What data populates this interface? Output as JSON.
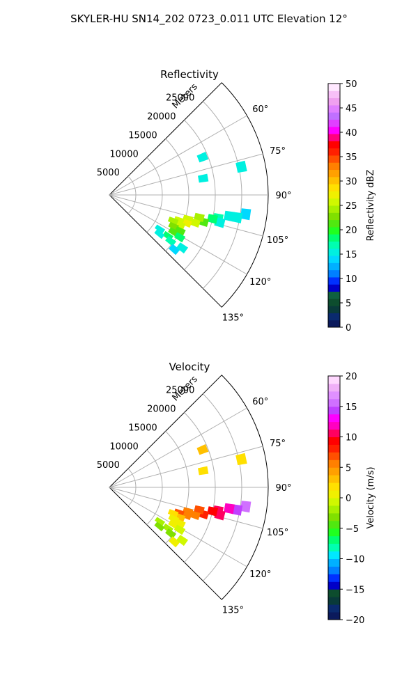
{
  "figure": {
    "title": "SKYLER-HU  SN14_202  0723_0.011 UTC Elevation 12°"
  },
  "chart_data": [
    {
      "type": "polar-sector",
      "title": "Reflectivity",
      "r_axis_label": "Meters",
      "r_ticks": [
        5000,
        10000,
        15000,
        20000,
        25000
      ],
      "r_tick_labels": [
        "5000",
        "10000",
        "15000",
        "20000",
        "25000"
      ],
      "r_max": 30000,
      "theta_range_deg": [
        45,
        135
      ],
      "theta_ticks": [
        60,
        75,
        90,
        105,
        120,
        135
      ],
      "theta_tick_labels": [
        "60°",
        "75°",
        "90°",
        "105°",
        "120°",
        "135°"
      ],
      "grid": true,
      "colorbar": {
        "label": "Reflectivity dBZ",
        "range": [
          0,
          50
        ],
        "ticks": [
          0,
          5,
          10,
          15,
          20,
          25,
          30,
          35,
          40,
          45,
          50
        ],
        "tick_labels": [
          "0",
          "5",
          "10",
          "15",
          "20",
          "25",
          "30",
          "35",
          "40",
          "45",
          "50"
        ],
        "colors": [
          "#0b1a5c",
          "#0a2a6e",
          "#093a3a",
          "#0d4d2e",
          "#0f6040",
          "#0000c8",
          "#0030ff",
          "#0080ff",
          "#00b0ff",
          "#00d8ff",
          "#00f0e0",
          "#00ffb0",
          "#00ff70",
          "#20ff20",
          "#50e810",
          "#80e000",
          "#a8f000",
          "#d0f800",
          "#f0f000",
          "#ffe000",
          "#ffc000",
          "#ffa000",
          "#ff8000",
          "#ff5000",
          "#ff2000",
          "#ff0000",
          "#ff0080",
          "#ff00ff",
          "#e040ff",
          "#c070ff",
          "#e080ff",
          "#f0a0f0",
          "#f8c0f8",
          "#ffe8ff"
        ]
      },
      "cells": [
        {
          "az": 98,
          "r": 26000,
          "v": 14
        },
        {
          "az": 100,
          "r": 24500,
          "v": 15
        },
        {
          "az": 100,
          "r": 23000,
          "v": 16
        },
        {
          "az": 102,
          "r": 21000,
          "v": 17
        },
        {
          "az": 104,
          "r": 21500,
          "v": 15
        },
        {
          "az": 103,
          "r": 20000,
          "v": 19
        },
        {
          "az": 106,
          "r": 18500,
          "v": 22
        },
        {
          "az": 104,
          "r": 17500,
          "v": 24
        },
        {
          "az": 108,
          "r": 17000,
          "v": 25
        },
        {
          "az": 107,
          "r": 15500,
          "v": 26
        },
        {
          "az": 110,
          "r": 15500,
          "v": 27
        },
        {
          "az": 110,
          "r": 14000,
          "v": 26
        },
        {
          "az": 113,
          "r": 14500,
          "v": 25
        },
        {
          "az": 112,
          "r": 13000,
          "v": 24
        },
        {
          "az": 116,
          "r": 13500,
          "v": 23
        },
        {
          "az": 117,
          "r": 15000,
          "v": 22
        },
        {
          "az": 120,
          "r": 14000,
          "v": 21
        },
        {
          "az": 121,
          "r": 15500,
          "v": 19
        },
        {
          "az": 125,
          "r": 13500,
          "v": 18
        },
        {
          "az": 127,
          "r": 14500,
          "v": 17
        },
        {
          "az": 124,
          "r": 11500,
          "v": 16
        },
        {
          "az": 128,
          "r": 12000,
          "v": 15
        },
        {
          "az": 130,
          "r": 16000,
          "v": 14
        },
        {
          "az": 126,
          "r": 17000,
          "v": 15
        },
        {
          "az": 80,
          "r": 18000,
          "v": 16
        },
        {
          "az": 68,
          "r": 19000,
          "v": 15
        },
        {
          "az": 78,
          "r": 25500,
          "v": 15
        }
      ]
    },
    {
      "type": "polar-sector",
      "title": "Velocity",
      "r_axis_label": "Meters",
      "r_ticks": [
        5000,
        10000,
        15000,
        20000,
        25000
      ],
      "r_tick_labels": [
        "5000",
        "10000",
        "15000",
        "20000",
        "25000"
      ],
      "r_max": 30000,
      "theta_range_deg": [
        45,
        135
      ],
      "theta_ticks": [
        60,
        75,
        90,
        105,
        120,
        135
      ],
      "theta_tick_labels": [
        "60°",
        "75°",
        "90°",
        "105°",
        "120°",
        "135°"
      ],
      "grid": true,
      "colorbar": {
        "label": "Velocity (m/s)",
        "range": [
          -20,
          20
        ],
        "ticks": [
          -20,
          -15,
          -10,
          -5,
          0,
          5,
          10,
          15,
          20
        ],
        "tick_labels": [
          "−20",
          "−15",
          "−10",
          "−5",
          "0",
          "5",
          "10",
          "15",
          "20"
        ],
        "colors": [
          "#0b1a5c",
          "#0a2a6e",
          "#093a3a",
          "#0d4d2e",
          "#0000c8",
          "#0030ff",
          "#0080ff",
          "#00b0ff",
          "#00e8ff",
          "#00ffb0",
          "#00ff70",
          "#20ff20",
          "#50e810",
          "#80e000",
          "#a8f000",
          "#d0f800",
          "#f0f000",
          "#ffe000",
          "#ffc000",
          "#ffa000",
          "#ff8000",
          "#ff5000",
          "#ff2000",
          "#ff0000",
          "#ff0060",
          "#ff00c0",
          "#ff00ff",
          "#c040ff",
          "#d070ff",
          "#e090ff",
          "#f0b0f8",
          "#ffd8ff"
        ]
      },
      "cells": [
        {
          "az": 98,
          "r": 26000,
          "v": 15
        },
        {
          "az": 100,
          "r": 24500,
          "v": 14
        },
        {
          "az": 100,
          "r": 23000,
          "v": 12
        },
        {
          "az": 102,
          "r": 21000,
          "v": 10
        },
        {
          "az": 104,
          "r": 21500,
          "v": 11
        },
        {
          "az": 103,
          "r": 20000,
          "v": 9
        },
        {
          "az": 106,
          "r": 18500,
          "v": 8
        },
        {
          "az": 104,
          "r": 17500,
          "v": 7
        },
        {
          "az": 108,
          "r": 17000,
          "v": 6
        },
        {
          "az": 107,
          "r": 15500,
          "v": 5
        },
        {
          "az": 110,
          "r": 15500,
          "v": 6
        },
        {
          "az": 110,
          "r": 14000,
          "v": 7
        },
        {
          "az": 113,
          "r": 14500,
          "v": 3
        },
        {
          "az": 112,
          "r": 13000,
          "v": 2
        },
        {
          "az": 116,
          "r": 13500,
          "v": 1
        },
        {
          "az": 117,
          "r": 15000,
          "v": 1
        },
        {
          "az": 120,
          "r": 14000,
          "v": 0
        },
        {
          "az": 121,
          "r": 15500,
          "v": -1
        },
        {
          "az": 125,
          "r": 13500,
          "v": -2
        },
        {
          "az": 127,
          "r": 14500,
          "v": -3
        },
        {
          "az": 124,
          "r": 11500,
          "v": -2
        },
        {
          "az": 128,
          "r": 12000,
          "v": -3
        },
        {
          "az": 130,
          "r": 16000,
          "v": 0
        },
        {
          "az": 126,
          "r": 17000,
          "v": -1
        },
        {
          "az": 80,
          "r": 18000,
          "v": 2
        },
        {
          "az": 68,
          "r": 19000,
          "v": 3
        },
        {
          "az": 78,
          "r": 25500,
          "v": 2
        }
      ]
    }
  ]
}
